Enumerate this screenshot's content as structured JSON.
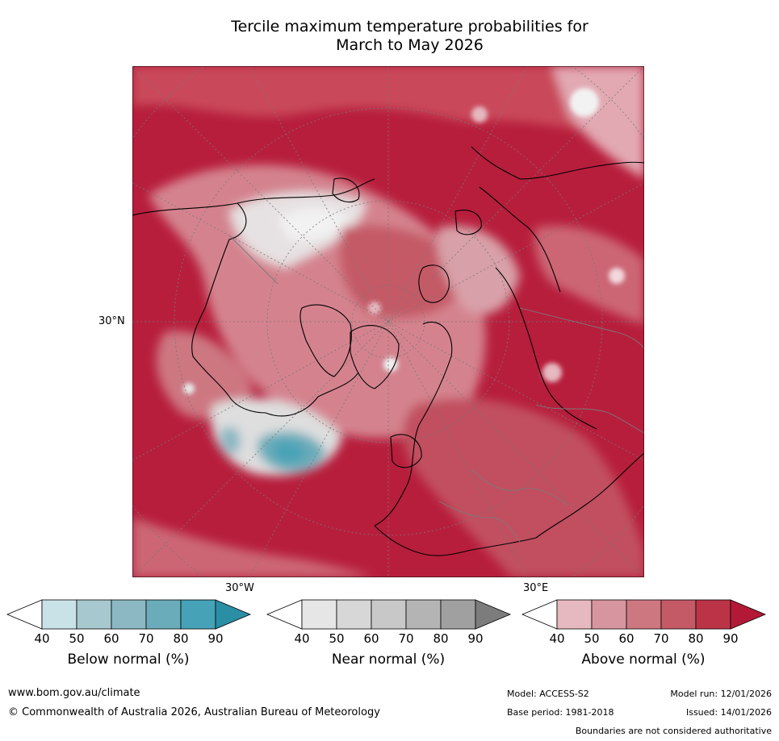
{
  "title_line1": "Tercile maximum temperature probabilities for",
  "title_line2": "March to May 2026",
  "map": {
    "lat_label": "30°N",
    "lon_labels": [
      "30°W",
      "30°E"
    ],
    "background_color": "#b71e3c"
  },
  "colorbars": [
    {
      "title": "Below normal (%)",
      "ticks": [
        "40",
        "50",
        "60",
        "70",
        "80",
        "90"
      ],
      "colors": [
        "#ffffff",
        "#c9e2e8",
        "#a7c8ce",
        "#8cb8c3",
        "#6aacba",
        "#46a2b6",
        "#2a8ea4"
      ]
    },
    {
      "title": "Near normal (%)",
      "ticks": [
        "40",
        "50",
        "60",
        "70",
        "80",
        "90"
      ],
      "colors": [
        "#ffffff",
        "#e6e6e6",
        "#d7d7d7",
        "#c8c8c8",
        "#b4b4b4",
        "#a0a0a0",
        "#7c7c7c"
      ]
    },
    {
      "title": "Above normal (%)",
      "ticks": [
        "40",
        "50",
        "60",
        "70",
        "80",
        "90"
      ],
      "colors": [
        "#ffffff",
        "#e6b8bf",
        "#d7969f",
        "#cd7781",
        "#c45a66",
        "#bb3347",
        "#b31937"
      ]
    }
  ],
  "footer": {
    "website": "www.bom.gov.au/climate",
    "copyright": "© Commonwealth of Australia 2026, Australian Bureau of Meteorology",
    "model": "Model: ACCESS-S2",
    "base_period": "Base period: 1981-2018",
    "model_run": "Model run: 12/01/2026",
    "issued": "Issued: 14/01/2026",
    "disclaimer": "Boundaries are not considered authoritative"
  }
}
